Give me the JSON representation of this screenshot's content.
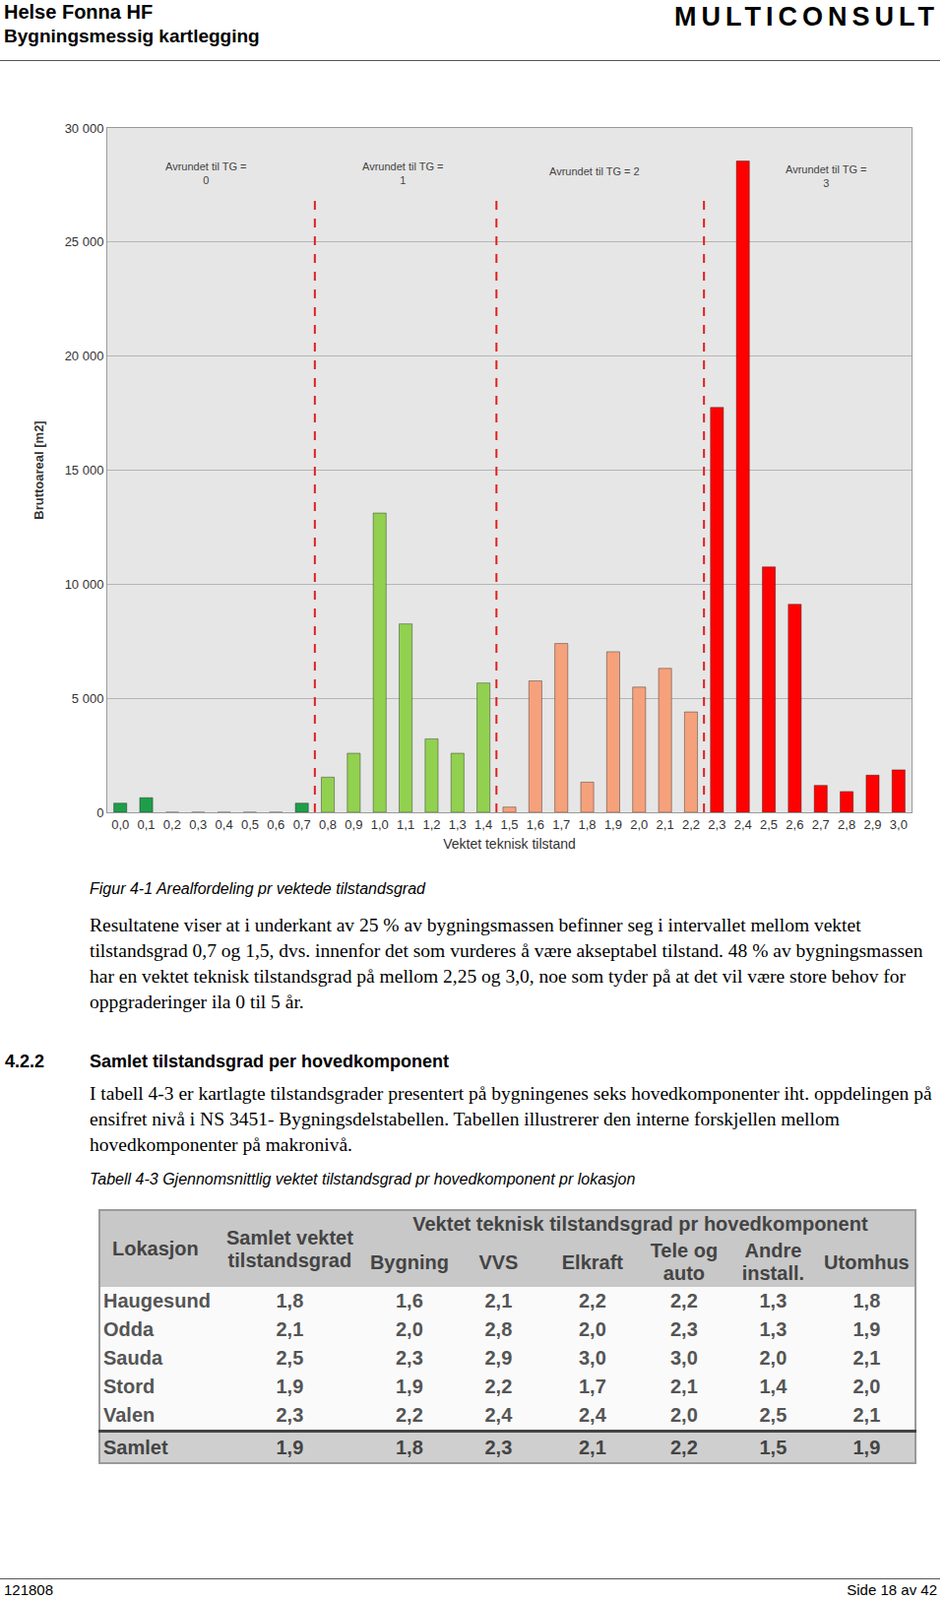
{
  "header": {
    "title": "Helse Fonna HF",
    "subtitle": "Bygningsmessig kartlegging",
    "company": "MULTICONSULT"
  },
  "chart_data": {
    "type": "bar",
    "x_label": "Vektet teknisk tilstand",
    "y_label": "Bruttoareal [m2]",
    "x": [
      0.0,
      0.1,
      0.2,
      0.3,
      0.4,
      0.5,
      0.6,
      0.7,
      0.8,
      0.9,
      1.0,
      1.1,
      1.2,
      1.3,
      1.4,
      1.5,
      1.6,
      1.7,
      1.8,
      1.9,
      2.0,
      2.1,
      2.2,
      2.3,
      2.4,
      2.5,
      2.6,
      2.7,
      2.8,
      2.9,
      3.0
    ],
    "values": [
      400,
      640,
      0,
      0,
      0,
      0,
      0,
      400,
      1540,
      2590,
      13120,
      8260,
      3220,
      2590,
      5670,
      230,
      5760,
      7400,
      1320,
      7040,
      5490,
      6310,
      4400,
      17750,
      28550,
      10760,
      9120,
      1180,
      910,
      1630,
      1860
    ],
    "colors": [
      "#1f9e4a",
      "#1f9e4a",
      "#1f9e4a",
      "#1f9e4a",
      "#1f9e4a",
      "#1f9e4a",
      "#1f9e4a",
      "#1f9e4a",
      "#92d050",
      "#92d050",
      "#92d050",
      "#92d050",
      "#92d050",
      "#92d050",
      "#92d050",
      "#f5a17c",
      "#f5a17c",
      "#f5a17c",
      "#f5a17c",
      "#f5a17c",
      "#f5a17c",
      "#f5a17c",
      "#f5a17c",
      "#ff0000",
      "#ff0000",
      "#ff0000",
      "#ff0000",
      "#ff0000",
      "#ff0000",
      "#ff0000",
      "#ff0000"
    ],
    "xlim": [
      -0.05,
      3.05
    ],
    "xticks": [
      {
        "value": 0.0,
        "label": "0,0"
      },
      {
        "value": 0.1,
        "label": "0,1"
      },
      {
        "value": 0.2,
        "label": "0,2"
      },
      {
        "value": 0.3,
        "label": "0,3"
      },
      {
        "value": 0.4,
        "label": "0,4"
      },
      {
        "value": 0.5,
        "label": "0,5"
      },
      {
        "value": 0.6,
        "label": "0,6"
      },
      {
        "value": 0.7,
        "label": "0,7"
      },
      {
        "value": 0.8,
        "label": "0,8"
      },
      {
        "value": 0.9,
        "label": "0,9"
      },
      {
        "value": 1.0,
        "label": "1,0"
      },
      {
        "value": 1.1,
        "label": "1,1"
      },
      {
        "value": 1.2,
        "label": "1,2"
      },
      {
        "value": 1.3,
        "label": "1,3"
      },
      {
        "value": 1.4,
        "label": "1,4"
      },
      {
        "value": 1.5,
        "label": "1,5"
      },
      {
        "value": 1.6,
        "label": "1,6"
      },
      {
        "value": 1.7,
        "label": "1,7"
      },
      {
        "value": 1.8,
        "label": "1,8"
      },
      {
        "value": 1.9,
        "label": "1,9"
      },
      {
        "value": 2.0,
        "label": "2,0"
      },
      {
        "value": 2.1,
        "label": "2,1"
      },
      {
        "value": 2.2,
        "label": "2,2"
      },
      {
        "value": 2.3,
        "label": "2,3"
      },
      {
        "value": 2.4,
        "label": "2,4"
      },
      {
        "value": 2.5,
        "label": "2,5"
      },
      {
        "value": 2.6,
        "label": "2,6"
      },
      {
        "value": 2.7,
        "label": "2,7"
      },
      {
        "value": 2.8,
        "label": "2,8"
      },
      {
        "value": 2.9,
        "label": "2,9"
      },
      {
        "value": 3.0,
        "label": "3,0"
      }
    ],
    "ylim": [
      0,
      30000
    ],
    "yticks": [
      0,
      {
        "value": 5000,
        "label": "5 000"
      },
      {
        "value": 10000,
        "label": "10 000"
      },
      {
        "value": 15000,
        "label": "15 000"
      },
      {
        "value": 20000,
        "label": "20 000"
      },
      {
        "value": 25000,
        "label": "25 000"
      },
      {
        "value": 30000,
        "label": "30 000"
      }
    ],
    "grid": true,
    "thresholds": [
      0.75,
      1.45,
      2.25
    ],
    "threshold_color": "#e02020",
    "annotations": [
      {
        "lines": [
          "Avrundet til TG =",
          "0"
        ],
        "x": 0.33,
        "y": 28000
      },
      {
        "lines": [
          "Avrundet til TG =",
          "1"
        ],
        "x": 1.09,
        "y": 28000
      },
      {
        "lines": [
          "Avrundet til TG = 2"
        ],
        "x": 1.83,
        "y": 28100
      },
      {
        "lines": [
          "Avrundet til TG =",
          "3"
        ],
        "x": 2.72,
        "y": 27900
      }
    ]
  },
  "figure_caption": "Figur 4-1 Arealfordeling pr vektede tilstandsgrad",
  "paragraphs": [
    "Resultatene viser at i underkant av 25 % av bygningsmassen befinner seg i intervallet mellom vektet tilstandsgrad 0,7 og 1,5, dvs. innenfor det som vurderes å være akseptabel tilstand. 48 % av bygningsmassen har en vektet teknisk tilstandsgrad på mellom 2,25 og 3,0, noe som tyder på at det vil være store behov for oppgraderinger ila 0 til 5 år."
  ],
  "section": {
    "number": "4.2.2",
    "title": "Samlet tilstandsgrad per hovedkomponent",
    "text": "I tabell 4-3 er kartlagte tilstandsgrader presentert på bygningenes seks hovedkomponenter iht. oppdelingen på ensifret nivå i NS 3451- Bygningsdelstabellen. Tabellen illustrerer den interne forskjellen mellom hovedkomponenter på makronivå."
  },
  "table": {
    "caption": "Tabell 4-3 Gjennomsnittlig vektet tilstandsgrad pr hovedkomponent pr lokasjon",
    "group_header": "Vektet teknisk tilstandsgrad pr hovedkomponent",
    "columns": [
      "Lokasjon",
      "Samlet vektet\ntilstandsgrad",
      "Bygning",
      "VVS",
      "Elkraft",
      "Tele og\nauto",
      "Andre\ninstall.",
      "Utomhus"
    ],
    "rows": [
      [
        "Haugesund",
        "1,8",
        "1,6",
        "2,1",
        "2,2",
        "2,2",
        "1,3",
        "1,8"
      ],
      [
        "Odda",
        "2,1",
        "2,0",
        "2,8",
        "2,0",
        "2,3",
        "1,3",
        "1,9"
      ],
      [
        "Sauda",
        "2,5",
        "2,3",
        "2,9",
        "3,0",
        "3,0",
        "2,0",
        "2,1"
      ],
      [
        "Stord",
        "1,9",
        "1,9",
        "2,2",
        "1,7",
        "2,1",
        "1,4",
        "2,0"
      ],
      [
        "Valen",
        "2,3",
        "2,2",
        "2,4",
        "2,4",
        "2,0",
        "2,5",
        "2,1"
      ]
    ],
    "total_row": [
      "Samlet",
      "1,9",
      "1,8",
      "2,3",
      "2,1",
      "2,2",
      "1,5",
      "1,9"
    ]
  },
  "footer": {
    "left": "121808",
    "right": "Side 18 av 42"
  }
}
